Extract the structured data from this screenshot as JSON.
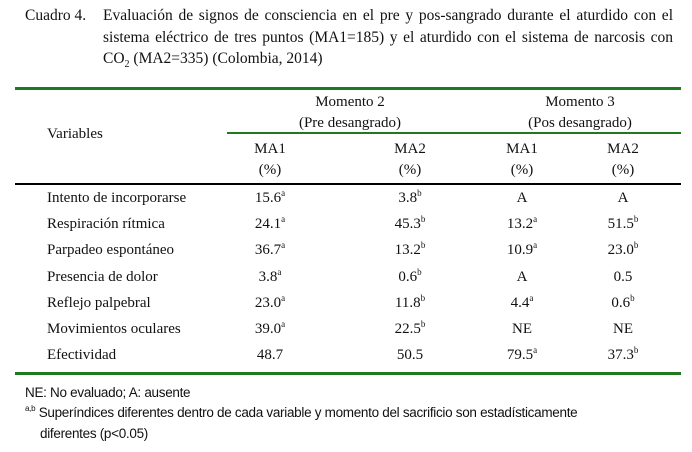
{
  "caption": {
    "label": "Cuadro 4.",
    "text_before_sub": "Evaluación de signos de consciencia en el pre y pos-sangrado durante el aturdido con el sistema eléctrico de tres puntos (MA1=185) y el aturdido con el sistema de narcosis con CO",
    "subscript": "2",
    "text_after_sub": " (MA2=335) (Colombia, 2014)"
  },
  "table": {
    "variables_header": "Variables",
    "groups": [
      {
        "title": "Momento 2",
        "subtitle": "(Pre desangrado)"
      },
      {
        "title": "Momento 3",
        "subtitle": "(Pos desangrado)"
      }
    ],
    "columns": [
      {
        "name": "MA1",
        "unit": "(%)"
      },
      {
        "name": "MA2",
        "unit": "(%)"
      },
      {
        "name": "MA1",
        "unit": "(%)"
      },
      {
        "name": "MA2",
        "unit": "(%)"
      }
    ],
    "rows": [
      {
        "variable": "Intento de incorporarse",
        "cells": [
          {
            "v": "15.6",
            "s": "a"
          },
          {
            "v": "3.8",
            "s": "b"
          },
          {
            "v": "A",
            "s": ""
          },
          {
            "v": "A",
            "s": ""
          }
        ]
      },
      {
        "variable": "Respiración rítmica",
        "cells": [
          {
            "v": "24.1",
            "s": "a"
          },
          {
            "v": "45.3",
            "s": "b"
          },
          {
            "v": "13.2",
            "s": "a"
          },
          {
            "v": "51.5",
            "s": "b"
          }
        ]
      },
      {
        "variable": "Parpadeo espontáneo",
        "cells": [
          {
            "v": "36.7",
            "s": "a"
          },
          {
            "v": "13.2",
            "s": "b"
          },
          {
            "v": "10.9",
            "s": "a"
          },
          {
            "v": "23.0",
            "s": "b"
          }
        ]
      },
      {
        "variable": "Presencia de dolor",
        "cells": [
          {
            "v": "3.8",
            "s": "a"
          },
          {
            "v": "0.6",
            "s": "b"
          },
          {
            "v": "A",
            "s": ""
          },
          {
            "v": "0.5",
            "s": ""
          }
        ]
      },
      {
        "variable": "Reflejo palpebral",
        "cells": [
          {
            "v": "23.0",
            "s": "a"
          },
          {
            "v": "11.8",
            "s": "b"
          },
          {
            "v": "4.4",
            "s": "a"
          },
          {
            "v": "0.6",
            "s": "b"
          }
        ]
      },
      {
        "variable": "Movimientos oculares",
        "cells": [
          {
            "v": "39.0",
            "s": "a"
          },
          {
            "v": "22.5",
            "s": "b"
          },
          {
            "v": "NE",
            "s": ""
          },
          {
            "v": "NE",
            "s": ""
          }
        ]
      },
      {
        "variable": "Efectividad",
        "cells": [
          {
            "v": "48.7",
            "s": ""
          },
          {
            "v": "50.5",
            "s": ""
          },
          {
            "v": "79.5",
            "s": "a"
          },
          {
            "v": "37.3",
            "s": "b"
          }
        ]
      }
    ]
  },
  "footnotes": {
    "abbrev": "NE: No evaluado; A: ausente",
    "sig_marker": "a,b",
    "sig_text_1": "Superíndices diferentes dentro de cada variable y momento del sacrificio son estadísticamente",
    "sig_text_2": "diferentes (p<0.05)"
  },
  "colors": {
    "rule_green": "#1f7a1f",
    "rule_black": "#000000"
  }
}
